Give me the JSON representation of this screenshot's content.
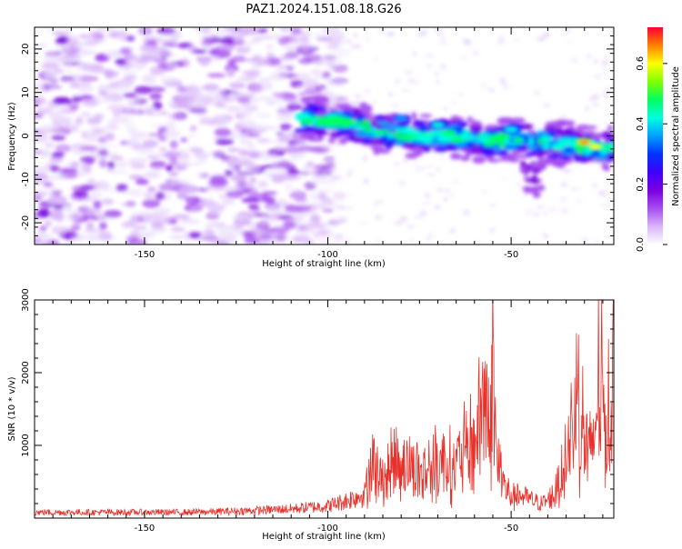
{
  "figure": {
    "title": "PAZ1.2024.151.08.18.G26"
  },
  "chart_data": [
    {
      "type": "heatmap",
      "xlabel": "Height of straight line (km)",
      "ylabel": "Frequency (Hz)",
      "xlim": [
        -180,
        -22
      ],
      "ylim": [
        -25,
        25
      ],
      "x_ticks": [
        -150,
        -100,
        -50
      ],
      "y_ticks": [
        -20,
        -10,
        0,
        10,
        20
      ],
      "colorbar": {
        "label": "Normalized spectral amplitude",
        "range": [
          0.0,
          0.72
        ],
        "ticks": [
          0.0,
          0.2,
          0.4,
          0.6
        ],
        "colormap": [
          "#ffffff",
          "#d8b4f8",
          "#a64df0",
          "#7a00e0",
          "#3f00ff",
          "#0033ff",
          "#00a0ff",
          "#00ffe0",
          "#00ff60",
          "#80ff00",
          "#ffff00",
          "#ff8000",
          "#ff0033"
        ]
      },
      "ridge": {
        "description_points_x": [
          -105,
          -95,
          -85,
          -75,
          -65,
          -55,
          -45,
          -35,
          -25
        ],
        "frequency_y": [
          4,
          3,
          1,
          0,
          0,
          -1,
          -1,
          -2,
          -3
        ],
        "peaks": [
          {
            "x": -70,
            "y": 2.5,
            "amp": 0.4
          },
          {
            "x": -50,
            "y": 1.5,
            "amp": 0.42
          },
          {
            "x": -30,
            "y": -1.5,
            "amp": 0.68
          },
          {
            "x": -27,
            "y": -2.5,
            "amp": 0.62
          },
          {
            "x": -48,
            "y": -1,
            "amp": 0.45
          },
          {
            "x": -80,
            "y": 4,
            "amp": 0.38
          }
        ]
      }
    },
    {
      "type": "line",
      "xlabel": "Height of straight line (km)",
      "ylabel": "SNR (10 * v/v)",
      "xlim": [
        -180,
        -22
      ],
      "ylim": [
        0,
        3000
      ],
      "x_ticks": [
        -150,
        -100,
        -50
      ],
      "y_ticks": [
        1000,
        2000,
        3000
      ],
      "series": [
        {
          "color": "#e8312a",
          "x": [
            -180,
            -170,
            -160,
            -150,
            -140,
            -130,
            -120,
            -110,
            -100,
            -95,
            -90,
            -88,
            -86,
            -84,
            -82,
            -80,
            -78,
            -76,
            -74,
            -72,
            -70,
            -68,
            -66,
            -64,
            -62,
            -60,
            -58,
            -57,
            -56,
            -55,
            -54,
            -52,
            -50,
            -48,
            -46,
            -44,
            -42,
            -40,
            -38,
            -36,
            -34,
            -32,
            -30,
            -28,
            -26,
            -24,
            -22
          ],
          "values": [
            100,
            100,
            100,
            100,
            100,
            110,
            130,
            160,
            210,
            300,
            420,
            1300,
            800,
            900,
            1100,
            1200,
            1100,
            1000,
            900,
            1000,
            1100,
            1200,
            1000,
            1200,
            1400,
            1500,
            2200,
            2500,
            1600,
            3000,
            1200,
            700,
            500,
            400,
            350,
            300,
            250,
            300,
            500,
            900,
            1500,
            2600,
            1600,
            1200,
            2900,
            1800,
            3000
          ]
        }
      ]
    }
  ]
}
